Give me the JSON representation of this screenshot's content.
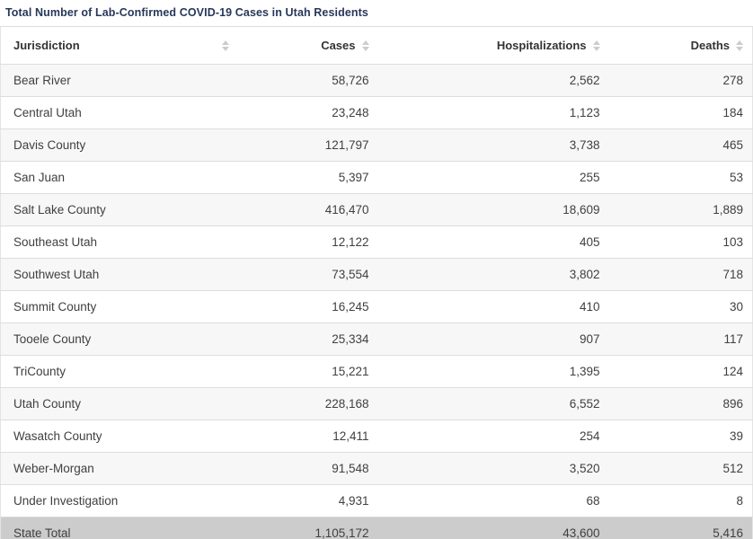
{
  "title": "Total Number of Lab-Confirmed COVID-19 Cases in Utah Residents",
  "colors": {
    "title_text": "#26385a",
    "header_text": "#333333",
    "cell_text": "#404040",
    "stripe_row_bg": "#f7f7f7",
    "total_row_bg": "#cccccc",
    "row_border": "#dddddd",
    "table_bottom_border": "#999999",
    "sort_icon": "#cccccc"
  },
  "table": {
    "columns": [
      {
        "label": "Jurisdiction",
        "icon": "sort-arrows-icon"
      },
      {
        "label": "Cases",
        "icon": "sort-arrows-icon"
      },
      {
        "label": "Hospitalizations",
        "icon": "sort-arrows-icon"
      },
      {
        "label": "Deaths",
        "icon": "sort-arrows-icon"
      }
    ],
    "rows": [
      {
        "jurisdiction": "Bear River",
        "cases": "58,726",
        "hospitalizations": "2,562",
        "deaths": "278"
      },
      {
        "jurisdiction": "Central Utah",
        "cases": "23,248",
        "hospitalizations": "1,123",
        "deaths": "184"
      },
      {
        "jurisdiction": "Davis County",
        "cases": "121,797",
        "hospitalizations": "3,738",
        "deaths": "465"
      },
      {
        "jurisdiction": "San Juan",
        "cases": "5,397",
        "hospitalizations": "255",
        "deaths": "53"
      },
      {
        "jurisdiction": "Salt Lake County",
        "cases": "416,470",
        "hospitalizations": "18,609",
        "deaths": "1,889"
      },
      {
        "jurisdiction": "Southeast Utah",
        "cases": "12,122",
        "hospitalizations": "405",
        "deaths": "103"
      },
      {
        "jurisdiction": "Southwest Utah",
        "cases": "73,554",
        "hospitalizations": "3,802",
        "deaths": "718"
      },
      {
        "jurisdiction": "Summit County",
        "cases": "16,245",
        "hospitalizations": "410",
        "deaths": "30"
      },
      {
        "jurisdiction": "Tooele County",
        "cases": "25,334",
        "hospitalizations": "907",
        "deaths": "117"
      },
      {
        "jurisdiction": "TriCounty",
        "cases": "15,221",
        "hospitalizations": "1,395",
        "deaths": "124"
      },
      {
        "jurisdiction": "Utah County",
        "cases": "228,168",
        "hospitalizations": "6,552",
        "deaths": "896"
      },
      {
        "jurisdiction": "Wasatch County",
        "cases": "12,411",
        "hospitalizations": "254",
        "deaths": "39"
      },
      {
        "jurisdiction": "Weber-Morgan",
        "cases": "91,548",
        "hospitalizations": "3,520",
        "deaths": "512"
      },
      {
        "jurisdiction": "Under Investigation",
        "cases": "4,931",
        "hospitalizations": "68",
        "deaths": "8"
      }
    ],
    "total_row": {
      "jurisdiction": "State Total",
      "cases": "1,105,172",
      "hospitalizations": "43,600",
      "deaths": "5,416"
    }
  },
  "chart_data": {
    "type": "table",
    "title": "Total Number of Lab-Confirmed COVID-19 Cases in Utah Residents",
    "columns": [
      "Jurisdiction",
      "Cases",
      "Hospitalizations",
      "Deaths"
    ],
    "rows": [
      [
        "Bear River",
        58726,
        2562,
        278
      ],
      [
        "Central Utah",
        23248,
        1123,
        184
      ],
      [
        "Davis County",
        121797,
        3738,
        465
      ],
      [
        "San Juan",
        5397,
        255,
        53
      ],
      [
        "Salt Lake County",
        416470,
        18609,
        1889
      ],
      [
        "Southeast Utah",
        12122,
        405,
        103
      ],
      [
        "Southwest Utah",
        73554,
        3802,
        718
      ],
      [
        "Summit County",
        16245,
        410,
        30
      ],
      [
        "Tooele County",
        25334,
        907,
        117
      ],
      [
        "TriCounty",
        15221,
        1395,
        124
      ],
      [
        "Utah County",
        228168,
        6552,
        896
      ],
      [
        "Wasatch County",
        12411,
        254,
        39
      ],
      [
        "Weber-Morgan",
        91548,
        3520,
        512
      ],
      [
        "Under Investigation",
        4931,
        68,
        8
      ]
    ],
    "total": [
      "State Total",
      1105172,
      43600,
      5416
    ],
    "sortable_columns": true
  }
}
